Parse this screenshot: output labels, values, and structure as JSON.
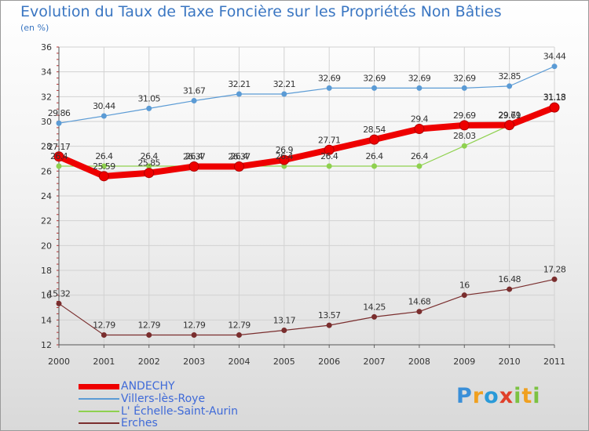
{
  "title": "Evolution du Taux de Taxe Foncière sur les Propriétés Non Bâties",
  "subtitle": "(en %)",
  "logo": {
    "text": "Proxiti",
    "letters": [
      "P",
      "r",
      "o",
      "x",
      "i",
      "t",
      "i"
    ],
    "colors": [
      "#3a8fd8",
      "#f0a020",
      "#2a9ad8",
      "#e0402a",
      "#7cc242",
      "#f0a020",
      "#7cc242"
    ]
  },
  "chart_data": {
    "type": "line",
    "title": "Evolution du Taux de Taxe Foncière sur les Propriétés Non Bâties",
    "ylabel": "(en %)",
    "xlabel": "",
    "ylim": [
      12,
      36
    ],
    "yticks": [
      "12",
      "14",
      "16",
      "18",
      "20",
      "22",
      "24",
      "26",
      "28",
      "30",
      "32",
      "34",
      "36"
    ],
    "categories": [
      "2000",
      "2001",
      "2002",
      "2003",
      "2004",
      "2005",
      "2006",
      "2007",
      "2008",
      "2009",
      "2010",
      "2011"
    ],
    "grid": true,
    "legend": "bottom-left",
    "series": [
      {
        "name": "ANDECHY",
        "color": "#ee0000",
        "values": [
          27.17,
          25.59,
          25.85,
          26.37,
          26.37,
          26.9,
          27.71,
          28.54,
          29.4,
          29.69,
          29.71,
          31.13
        ],
        "labels": [
          "27.17",
          "25.59",
          "25.85",
          "26.37",
          "26.37",
          "26.9",
          "27.71",
          "28.54",
          "29.4",
          "29.69",
          "29.71",
          "31.13"
        ]
      },
      {
        "name": "Villers-lès-Roye",
        "color": "#5b9bd5",
        "values": [
          29.86,
          30.44,
          31.05,
          31.67,
          32.21,
          32.21,
          32.69,
          32.69,
          32.69,
          32.69,
          32.85,
          34.44
        ],
        "labels": [
          "29.86",
          "30.44",
          "31.05",
          "31.67",
          "32.21",
          "32.21",
          "32.69",
          "32.69",
          "32.69",
          "32.69",
          "32.85",
          "34.44"
        ]
      },
      {
        "name": "L' Échelle-Saint-Aurin",
        "color": "#8fd14f",
        "values": [
          26.4,
          26.4,
          26.4,
          26.4,
          26.4,
          26.4,
          26.4,
          26.4,
          26.4,
          28.03,
          29.69,
          31.18
        ],
        "labels": [
          "26.4",
          "26.4",
          "26.4",
          "26.4",
          "26.4",
          "26.4",
          "26.4",
          "26.4",
          "26.4",
          "28.03",
          "29.69",
          "31.18"
        ]
      },
      {
        "name": "Erches",
        "color": "#7a2e2e",
        "values": [
          15.32,
          12.79,
          12.79,
          12.79,
          12.79,
          13.17,
          13.57,
          14.25,
          14.68,
          16,
          16.48,
          17.28
        ],
        "labels": [
          "15.32",
          "12.79",
          "12.79",
          "12.79",
          "12.79",
          "13.17",
          "13.57",
          "14.25",
          "14.68",
          "16",
          "16.48",
          "17.28"
        ]
      }
    ]
  }
}
